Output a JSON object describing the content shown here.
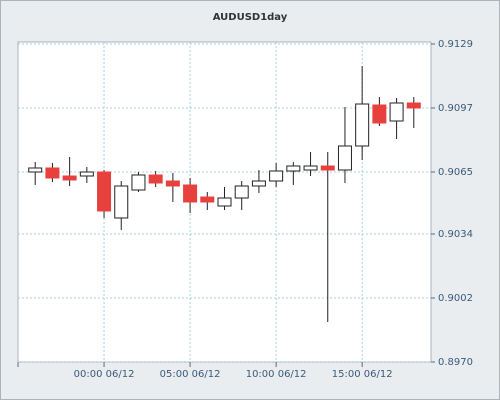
{
  "chart_data": {
    "type": "candlestick",
    "title": "AUDUSD1day",
    "categories": [
      null,
      null,
      null,
      null,
      "00:00 06/12",
      null,
      null,
      null,
      null,
      "05:00 06/12",
      null,
      null,
      null,
      null,
      "10:00 06/12",
      null,
      null,
      null,
      null,
      "15:00 06/12",
      null,
      null,
      null
    ],
    "open": [
      0.9065,
      0.9067,
      0.9063,
      0.9063,
      0.9065,
      0.9042,
      0.9056,
      0.90635,
      0.90605,
      0.90585,
      0.90525,
      0.9048,
      0.9052,
      0.9058,
      0.90605,
      0.90655,
      0.9066,
      0.9068,
      0.9066,
      0.9078,
      0.90985,
      0.90905,
      0.90995
    ],
    "high": [
      0.907,
      0.90695,
      0.90725,
      0.90675,
      0.9066,
      0.90605,
      0.9065,
      0.90655,
      0.90645,
      0.9062,
      0.9055,
      0.90575,
      0.90605,
      0.9066,
      0.90695,
      0.907,
      0.9075,
      0.9075,
      0.90975,
      0.9118,
      0.91025,
      0.9102,
      0.91025
    ],
    "low": [
      0.90585,
      0.906,
      0.9058,
      0.90595,
      0.9042,
      0.9036,
      0.9055,
      0.90575,
      0.905,
      0.90445,
      0.9046,
      0.9046,
      0.9046,
      0.90545,
      0.90575,
      0.90585,
      0.9063,
      0.899,
      0.90595,
      0.9071,
      0.9088,
      0.90815,
      0.9087
    ],
    "close": [
      0.9067,
      0.9062,
      0.9061,
      0.9065,
      0.90455,
      0.9058,
      0.90635,
      0.90595,
      0.9058,
      0.905,
      0.905,
      0.9052,
      0.9058,
      0.90605,
      0.90655,
      0.9068,
      0.9068,
      0.9066,
      0.9078,
      0.9099,
      0.90895,
      0.90995,
      0.9097
    ],
    "up_color": "#ffffff",
    "down_color": "#e8403d",
    "ylim": [
      0.897,
      0.9129
    ],
    "yticks": [
      {
        "value": 0.897,
        "label": "0.8970"
      },
      0.9002,
      0.9034,
      0.9065,
      0.9097,
      0.9129
    ],
    "grid": true
  }
}
